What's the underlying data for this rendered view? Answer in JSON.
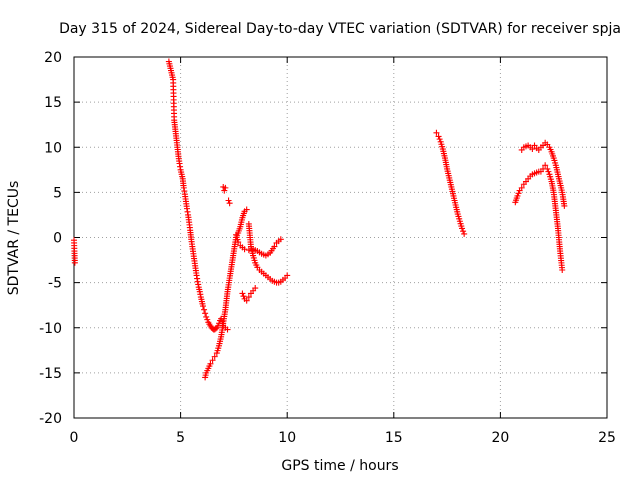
{
  "chart_data": {
    "type": "scatter",
    "title": "Day 315 of 2024, Sidereal Day-to-day VTEC variation (SDTVAR) for receiver spja",
    "xlabel": "GPS time / hours",
    "ylabel": "SDTVAR / TECUs",
    "xlim": [
      0,
      25
    ],
    "ylim": [
      -20,
      20
    ],
    "x_ticks": [
      "0",
      "5",
      "10",
      "15",
      "20",
      "25"
    ],
    "y_ticks": [
      "-20",
      "-15",
      "-10",
      "-5",
      "0",
      "5",
      "10",
      "15",
      "20"
    ],
    "grid": true,
    "marker": "+",
    "marker_color": "#ff0000",
    "series": [
      {
        "name": "s1",
        "x": [
          0.0,
          0.02,
          0.04
        ],
        "y": [
          -0.3,
          -1.5,
          -2.8
        ]
      },
      {
        "name": "s2",
        "x": [
          4.45,
          4.5,
          4.55,
          4.6,
          4.65,
          4.7,
          4.75,
          4.8,
          4.85,
          4.9,
          4.95,
          5.0,
          5.05,
          5.1,
          5.15,
          5.2,
          5.25,
          5.3,
          5.35,
          5.4,
          5.45,
          5.5,
          5.55,
          5.6,
          5.65,
          5.7,
          5.75,
          5.8,
          5.85,
          5.9,
          5.95,
          6.0,
          6.05,
          6.1,
          6.15,
          6.2,
          6.25,
          6.3,
          6.35,
          6.4,
          6.45,
          6.5,
          6.55,
          6.6,
          6.65,
          6.7,
          6.75,
          6.8,
          6.85,
          6.9,
          6.95,
          7.0,
          7.1,
          7.2
        ],
        "y": [
          19.5,
          19.0,
          18.5,
          18.0,
          17.5,
          13.0,
          12.0,
          11.0,
          10.0,
          9.0,
          8.2,
          7.5,
          7.0,
          6.5,
          5.5,
          4.8,
          4.0,
          3.2,
          2.5,
          1.7,
          0.8,
          -0.2,
          -1.0,
          -1.8,
          -2.6,
          -3.4,
          -4.2,
          -4.9,
          -5.5,
          -6.0,
          -6.6,
          -7.1,
          -7.6,
          -8.0,
          -8.4,
          -8.8,
          -9.1,
          -9.4,
          -9.6,
          -9.8,
          -10.0,
          -10.1,
          -10.2,
          -10.2,
          -10.1,
          -10.0,
          -9.8,
          -9.5,
          -9.2,
          -9.0,
          -9.3,
          -9.8,
          -10.0,
          -10.2
        ]
      },
      {
        "name": "s3",
        "x": [
          7.0,
          7.05,
          7.1
        ],
        "y": [
          5.6,
          5.2,
          5.5
        ]
      },
      {
        "name": "s4",
        "x": [
          7.25,
          7.3
        ],
        "y": [
          4.1,
          3.8
        ]
      },
      {
        "name": "s5",
        "x": [
          6.15,
          6.2,
          6.3,
          6.4,
          6.5,
          6.6,
          6.7,
          6.8,
          6.9,
          7.0,
          7.1,
          7.2,
          7.3,
          7.4,
          7.5,
          7.6,
          7.7,
          7.8,
          7.9,
          8.0,
          8.1
        ],
        "y": [
          -15.5,
          -15.0,
          -14.5,
          -14.0,
          -13.6,
          -13.2,
          -12.8,
          -12.0,
          -11.0,
          -9.5,
          -8.0,
          -6.0,
          -4.5,
          -3.0,
          -1.5,
          0.0,
          0.5,
          1.2,
          2.2,
          2.9,
          3.1
        ]
      },
      {
        "name": "s6",
        "x": [
          7.6,
          7.7,
          7.8,
          7.9,
          8.0,
          8.2,
          8.4,
          8.6,
          8.8,
          9.0,
          9.2,
          9.4,
          9.5,
          9.6,
          9.7
        ],
        "y": [
          0.3,
          -0.5,
          -0.9,
          -1.1,
          -1.3,
          -1.4,
          -1.3,
          -1.5,
          -1.8,
          -2.0,
          -1.7,
          -1.0,
          -0.6,
          -0.4,
          -0.2
        ]
      },
      {
        "name": "s7",
        "x": [
          8.2,
          8.3,
          8.4,
          8.5,
          8.6,
          8.7,
          8.8,
          8.9,
          9.0,
          9.1,
          9.2,
          9.3,
          9.4,
          9.5,
          9.6,
          9.7,
          9.8,
          9.9,
          10.0
        ],
        "y": [
          1.5,
          -1.0,
          -2.0,
          -2.8,
          -3.3,
          -3.6,
          -3.8,
          -4.0,
          -4.2,
          -4.4,
          -4.6,
          -4.8,
          -4.9,
          -5.0,
          -5.0,
          -4.9,
          -4.7,
          -4.5,
          -4.2
        ]
      },
      {
        "name": "s8",
        "x": [
          7.9,
          8.0,
          8.1,
          8.2,
          8.3,
          8.4,
          8.5
        ],
        "y": [
          -6.2,
          -6.8,
          -7.0,
          -6.6,
          -6.2,
          -5.9,
          -5.6
        ]
      },
      {
        "name": "s9",
        "x": [
          17.0,
          17.1,
          17.2,
          17.3,
          17.4,
          17.5,
          17.6,
          17.7,
          17.8,
          17.9,
          18.0,
          18.1,
          18.2,
          18.3
        ],
        "y": [
          11.6,
          11.2,
          10.6,
          9.8,
          8.8,
          7.6,
          6.6,
          5.6,
          4.6,
          3.6,
          2.6,
          1.8,
          1.0,
          0.4
        ]
      },
      {
        "name": "s10",
        "x": [
          20.7,
          20.8,
          20.9,
          21.0,
          21.1,
          21.2,
          21.3,
          21.4,
          21.5,
          21.6,
          21.7,
          21.8,
          21.9,
          22.0,
          22.1,
          22.2,
          22.3,
          22.4,
          22.5,
          22.6,
          22.7,
          22.8,
          22.9
        ],
        "y": [
          3.9,
          4.6,
          5.2,
          5.5,
          5.9,
          6.2,
          6.5,
          6.8,
          7.0,
          7.1,
          7.2,
          7.3,
          7.3,
          7.6,
          8.0,
          7.6,
          7.0,
          6.2,
          5.0,
          3.0,
          1.0,
          -1.5,
          -3.6
        ]
      },
      {
        "name": "s11",
        "x": [
          21.0,
          21.1,
          21.2,
          21.3,
          21.4,
          21.5,
          21.6,
          21.7,
          21.8,
          21.9,
          22.0,
          22.1,
          22.2,
          22.3,
          22.4,
          22.5,
          22.6,
          22.7,
          22.8,
          22.9,
          23.0
        ],
        "y": [
          9.7,
          10.0,
          10.1,
          10.2,
          10.0,
          9.8,
          10.2,
          9.9,
          9.7,
          10.0,
          10.2,
          10.5,
          10.3,
          10.0,
          9.5,
          8.8,
          8.0,
          7.0,
          6.0,
          5.0,
          3.5
        ]
      }
    ]
  }
}
